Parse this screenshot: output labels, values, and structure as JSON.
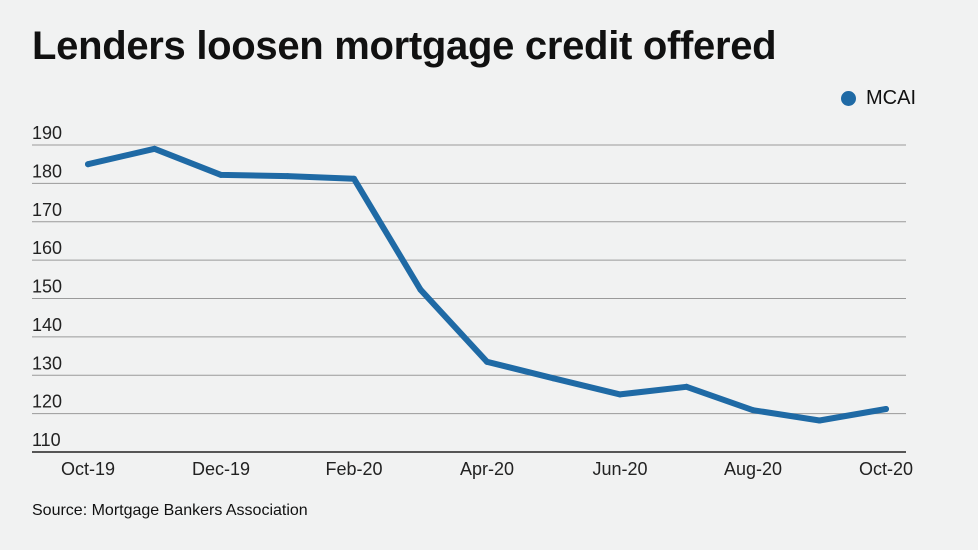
{
  "chart_data": {
    "type": "line",
    "title": "Lenders loosen mortgage credit offered",
    "subtitle": "",
    "xlabel": "",
    "ylabel": "",
    "source": "Source: Mortgage Bankers Association",
    "legend_position": "top-right",
    "grid": true,
    "categories": [
      "Oct-19",
      "Nov-19",
      "Dec-19",
      "Jan-20",
      "Feb-20",
      "Mar-20",
      "Apr-20",
      "May-20",
      "Jun-20",
      "Jul-20",
      "Aug-20",
      "Sep-20",
      "Oct-20"
    ],
    "tick_labels": [
      "Oct-19",
      "Dec-19",
      "Feb-20",
      "Apr-20",
      "Jun-20",
      "Aug-20",
      "Oct-20"
    ],
    "y_ticks": [
      110,
      120,
      130,
      140,
      150,
      160,
      170,
      180,
      190
    ],
    "ylim": [
      110,
      190
    ],
    "series": [
      {
        "name": "MCAI",
        "color": "#1f6aa5",
        "values": [
          185.0,
          189.0,
          182.2,
          181.9,
          181.2,
          152.3,
          133.5,
          129.2,
          125.0,
          127.0,
          120.9,
          118.2,
          121.2
        ]
      }
    ]
  }
}
